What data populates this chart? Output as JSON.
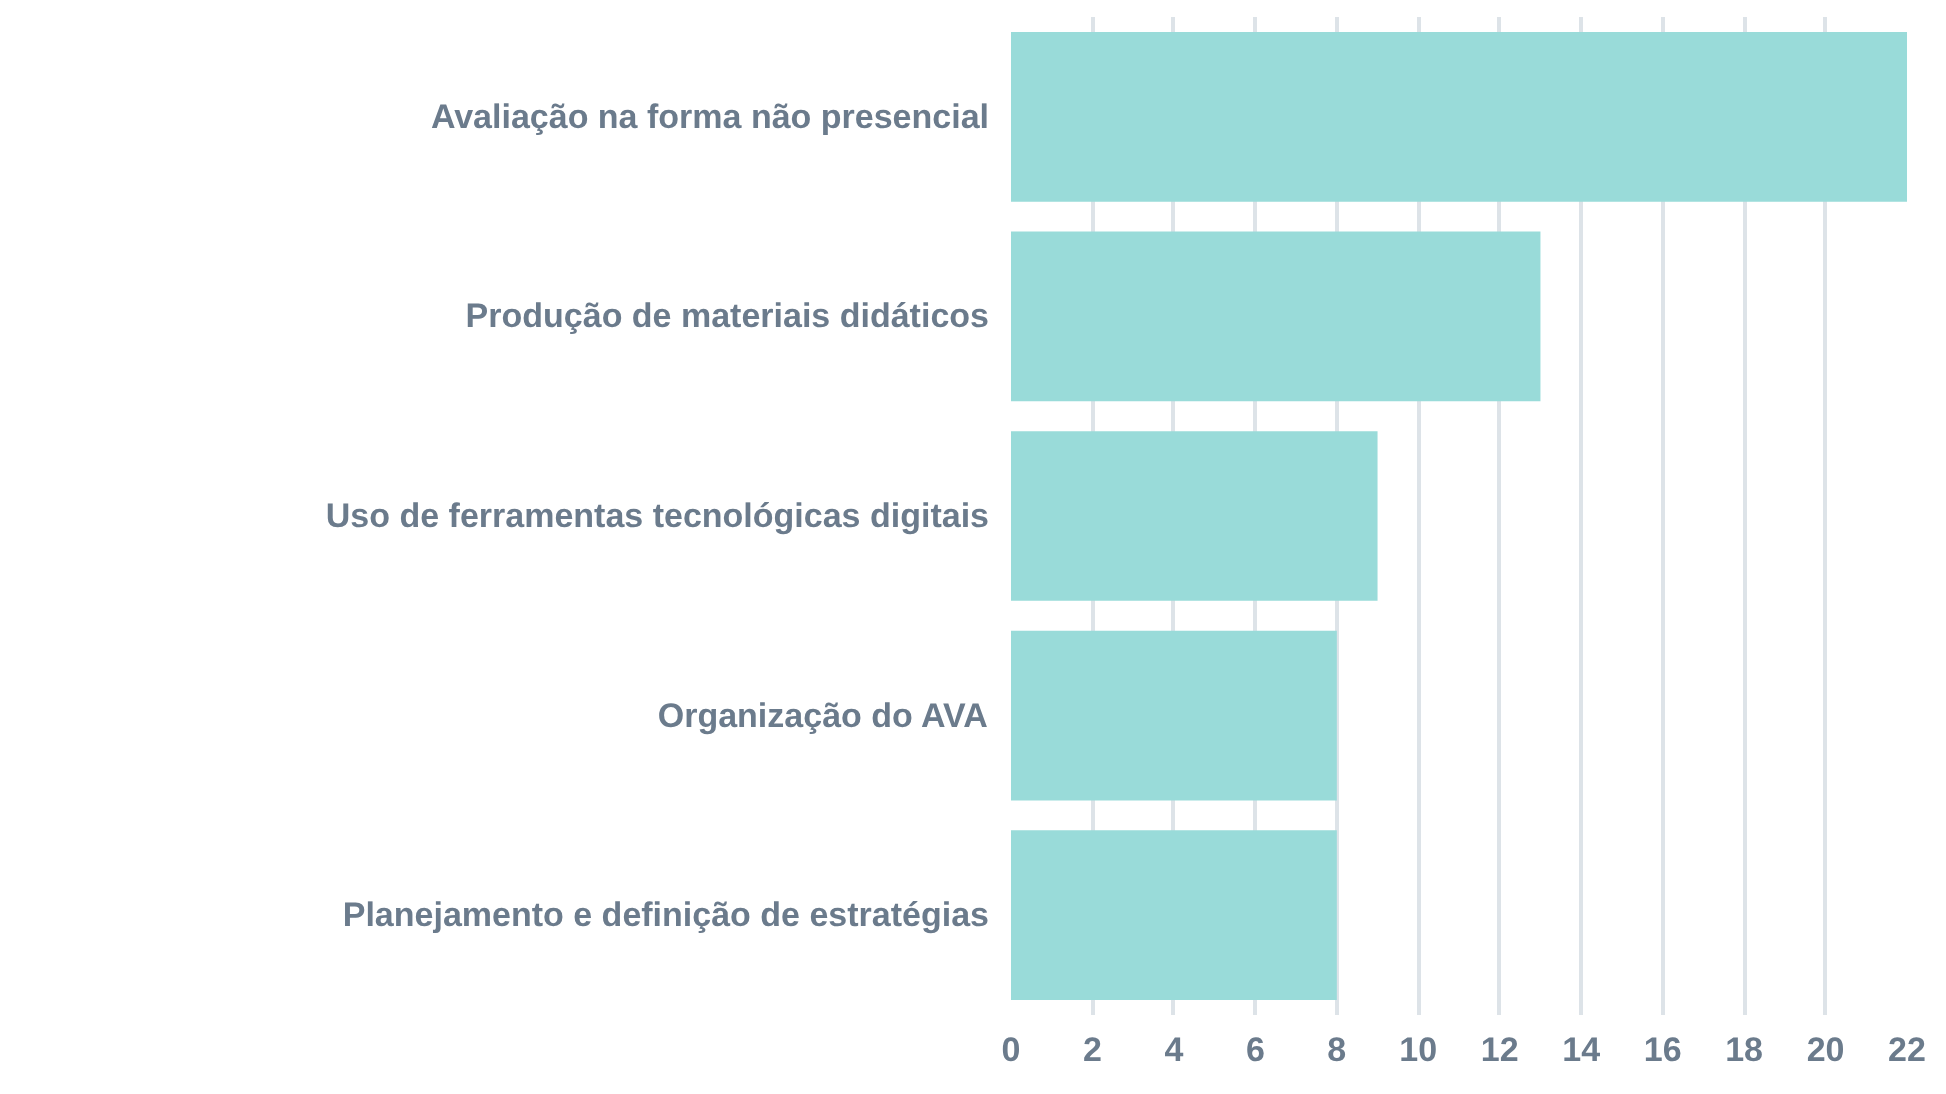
{
  "chart_data": {
    "type": "bar",
    "orientation": "horizontal",
    "categories": [
      "Avaliação na forma não presencial",
      "Produção de materiais didáticos",
      "Uso de ferramentas tecnológicas digitais",
      "Organização do AVA",
      "Planejamento e definição de estratégias"
    ],
    "values": [
      22,
      13,
      9,
      8,
      8
    ],
    "color": "#99dbd9",
    "xlim": [
      0,
      22
    ],
    "xticks": [
      0,
      2,
      4,
      6,
      8,
      10,
      12,
      14,
      16,
      18,
      20,
      22
    ],
    "grid": "x"
  }
}
